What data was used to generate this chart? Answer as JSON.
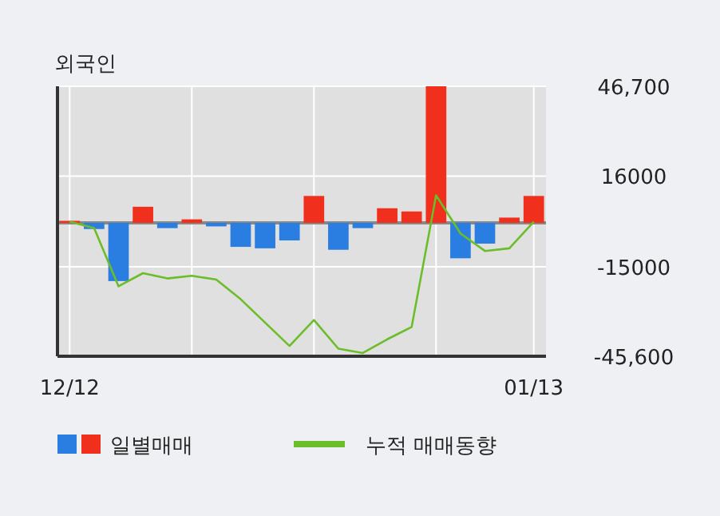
{
  "chart_data": {
    "type": "bar",
    "title": "외국인",
    "categories": [
      "12/12",
      null,
      null,
      null,
      null,
      null,
      null,
      null,
      null,
      null,
      null,
      null,
      null,
      null,
      null,
      null,
      null,
      null,
      null,
      "01/13"
    ],
    "series": [
      {
        "name": "일별매매",
        "colors": [
          "#f0301c",
          "#2a7de1",
          "#2a7de1",
          "#f0301c",
          "#2a7de1",
          "#f0301c",
          "#2a7de1",
          "#2a7de1",
          "#2a7de1",
          "#2a7de1",
          "#f0301c",
          "#2a7de1",
          "#2a7de1",
          "#f0301c",
          "#f0301c",
          "#f0301c",
          "#2a7de1",
          "#2a7de1",
          "#f0301c",
          "#f0301c"
        ],
        "values": [
          700,
          -2100,
          -19900,
          5500,
          -1800,
          1200,
          -1200,
          -8200,
          -8700,
          -6000,
          9200,
          -9200,
          -1800,
          5000,
          3900,
          46700,
          -12100,
          -7100,
          1800,
          9200
        ]
      },
      {
        "name": "누적 매매동향",
        "type": "line",
        "color": "#6cbd2a",
        "values": [
          400,
          -1800,
          -21700,
          -17200,
          -19000,
          -18100,
          -19400,
          -26100,
          -34100,
          -42100,
          -33200,
          -43000,
          -44500,
          -39800,
          -35600,
          9400,
          -3600,
          -9600,
          -8700,
          400
        ]
      }
    ],
    "ylim": [
      -45600,
      46700
    ],
    "yticks": [
      {
        "value": 46700,
        "label": "46,700"
      },
      16000,
      -15000,
      {
        "value": -45600,
        "label": "-45,600"
      }
    ],
    "grid": true,
    "legend": "bottom"
  }
}
